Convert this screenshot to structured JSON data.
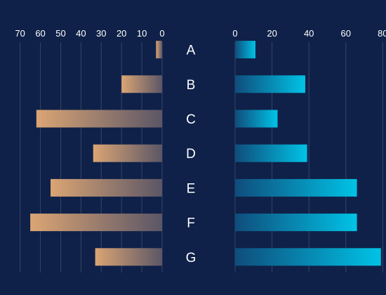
{
  "chart_data": {
    "type": "bar",
    "orientation": "horizontal",
    "layout": "butterfly",
    "categories": [
      "A",
      "B",
      "C",
      "D",
      "E",
      "F",
      "G"
    ],
    "series": [
      {
        "side": "left",
        "values": [
          3,
          20,
          62,
          34,
          55,
          65,
          33
        ],
        "xlim": [
          0,
          73
        ],
        "ticks": [
          70,
          60,
          50,
          40,
          30,
          20,
          10,
          0
        ],
        "color_start": "#dba574",
        "color_end": "#5b5666"
      },
      {
        "side": "right",
        "values": [
          11,
          38,
          23,
          39,
          66,
          66,
          79
        ],
        "xlim": [
          0,
          81
        ],
        "ticks": [
          0,
          20,
          40,
          60,
          80
        ],
        "color_start": "#0f4d7c",
        "color_end": "#00c3e6"
      }
    ],
    "title": "",
    "xlabel": "",
    "ylabel": "",
    "grid": true,
    "legend": "none",
    "background": "#0f2149"
  }
}
